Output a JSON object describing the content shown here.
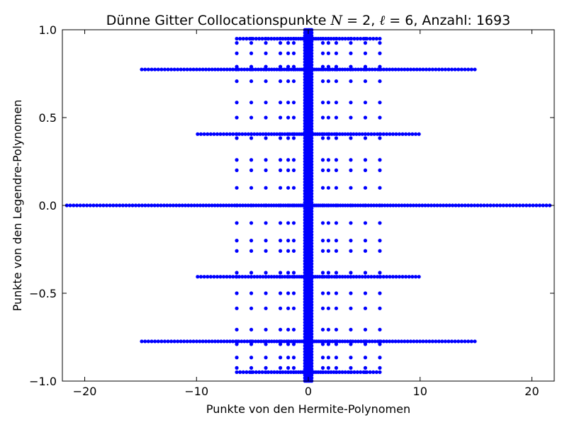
{
  "chart_data": {
    "type": "scatter",
    "title": {
      "prefix": "Dünne Gitter Collocationspunkte ",
      "math_n": "N",
      "eq1": " = 2, ",
      "math_l": "ℓ",
      "eq2": " = 6",
      "suffix": ", Anzahl: 1693"
    },
    "xlabel": "Punkte von den Hermite-Polynomen",
    "ylabel": "Punkte von den Legendre-Polynomen",
    "xlim": [
      -22,
      22
    ],
    "ylim": [
      -1.0,
      1.0
    ],
    "x_ticks": [
      -20,
      -10,
      0,
      10,
      20
    ],
    "x_tick_labels": [
      "−20",
      "−10",
      "0",
      "10",
      "20"
    ],
    "y_ticks": [
      -1.0,
      -0.5,
      0.0,
      0.5,
      1.0
    ],
    "y_tick_labels": [
      "−1.0",
      "−0.5",
      "0.0",
      "0.5",
      "1.0"
    ],
    "grid": false,
    "marker_color": "#0000ff",
    "point_count": 1693,
    "level_y_values": [
      -0.949,
      -0.774,
      -0.406,
      0.0,
      0.406,
      0.774,
      0.949
    ],
    "x_max_per_level": [
      6.4,
      14.9,
      9.9,
      21.6,
      9.9,
      14.9,
      6.4
    ],
    "central_x_band": [
      -0.3,
      0.3
    ],
    "x_columns": [
      {
        "x": -6.4,
        "y_max": 0.95
      },
      {
        "x": -5.1,
        "y_max": 0.95
      },
      {
        "x": -3.8,
        "y_max": 0.95
      },
      {
        "x": -2.5,
        "y_max": 0.95
      },
      {
        "x": -1.8,
        "y_max": 0.97
      },
      {
        "x": -1.3,
        "y_max": 0.97
      },
      {
        "x": 1.3,
        "y_max": 0.97
      },
      {
        "x": 1.8,
        "y_max": 0.97
      },
      {
        "x": 2.5,
        "y_max": 0.95
      },
      {
        "x": 3.8,
        "y_max": 0.95
      },
      {
        "x": 5.1,
        "y_max": 0.95
      },
      {
        "x": 6.4,
        "y_max": 0.95
      }
    ],
    "column_y_values": [
      -0.991,
      -0.949,
      -0.925,
      -0.866,
      -0.79,
      -0.774,
      -0.707,
      -0.586,
      -0.5,
      -0.406,
      -0.383,
      -0.259,
      -0.2,
      -0.1,
      0.0,
      0.1,
      0.2,
      0.259,
      0.383,
      0.406,
      0.5,
      0.586,
      0.707,
      0.774,
      0.79,
      0.866,
      0.925,
      0.949,
      0.991
    ]
  }
}
